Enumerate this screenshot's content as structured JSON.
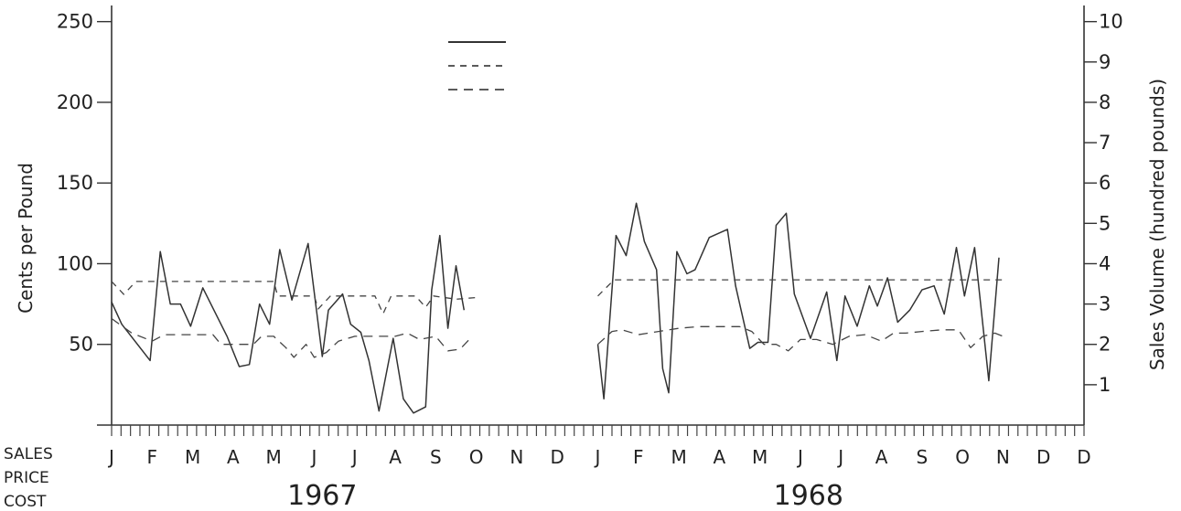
{
  "chart_data": {
    "type": "line",
    "y_left": {
      "label": "Cents per Pound",
      "ticks": [
        50,
        100,
        150,
        200,
        250
      ],
      "range": [
        0,
        260
      ]
    },
    "y_right": {
      "label": "Sales Volume (hundred pounds)",
      "ticks": [
        1,
        2,
        3,
        4,
        5,
        6,
        7,
        8,
        9,
        10
      ],
      "range": [
        0,
        10.4
      ]
    },
    "x": {
      "months": [
        "J",
        "F",
        "M",
        "A",
        "M",
        "J",
        "J",
        "A",
        "S",
        "O",
        "N",
        "D"
      ],
      "years": [
        "1967",
        "1968"
      ],
      "range": [
        0,
        24
      ]
    },
    "legend": {
      "placement": "top-center",
      "labels": [
        "SALES",
        "PRICE",
        "COST"
      ]
    },
    "series": [
      {
        "name": "SALES",
        "axis": "right",
        "style": "solid",
        "segments": [
          [
            [
              0.0,
              3.05
            ],
            [
              0.25,
              2.5
            ],
            [
              0.95,
              1.6
            ],
            [
              1.2,
              4.3
            ],
            [
              1.45,
              3.0
            ],
            [
              1.7,
              3.0
            ],
            [
              1.95,
              2.45
            ],
            [
              2.25,
              3.4
            ],
            [
              2.85,
              2.2
            ],
            [
              3.15,
              1.45
            ],
            [
              3.4,
              1.5
            ],
            [
              3.65,
              3.0
            ],
            [
              3.9,
              2.5
            ],
            [
              4.15,
              4.35
            ],
            [
              4.45,
              3.1
            ],
            [
              4.85,
              4.5
            ],
            [
              5.2,
              1.7
            ],
            [
              5.35,
              2.85
            ],
            [
              5.7,
              3.25
            ],
            [
              5.9,
              2.5
            ],
            [
              6.15,
              2.3
            ],
            [
              6.35,
              1.6
            ],
            [
              6.6,
              0.35
            ],
            [
              6.95,
              2.15
            ],
            [
              7.2,
              0.65
            ],
            [
              7.45,
              0.3
            ],
            [
              7.75,
              0.45
            ],
            [
              7.9,
              3.35
            ],
            [
              8.1,
              4.7
            ],
            [
              8.3,
              2.4
            ],
            [
              8.5,
              3.95
            ],
            [
              8.7,
              2.85
            ]
          ],
          [
            [
              12.0,
              2.0
            ],
            [
              12.15,
              0.65
            ],
            [
              12.45,
              4.7
            ],
            [
              12.7,
              4.2
            ],
            [
              12.95,
              5.5
            ],
            [
              13.15,
              4.55
            ],
            [
              13.45,
              3.85
            ],
            [
              13.6,
              1.4
            ],
            [
              13.75,
              0.8
            ],
            [
              13.95,
              4.3
            ],
            [
              14.2,
              3.75
            ],
            [
              14.4,
              3.85
            ],
            [
              14.75,
              4.65
            ],
            [
              15.2,
              4.85
            ],
            [
              15.4,
              3.45
            ],
            [
              15.75,
              1.9
            ],
            [
              15.95,
              2.05
            ],
            [
              16.2,
              2.05
            ],
            [
              16.4,
              4.95
            ],
            [
              16.65,
              5.25
            ],
            [
              16.85,
              3.25
            ],
            [
              17.25,
              2.15
            ],
            [
              17.65,
              3.3
            ],
            [
              17.9,
              1.6
            ],
            [
              18.1,
              3.2
            ],
            [
              18.4,
              2.45
            ],
            [
              18.7,
              3.45
            ],
            [
              18.9,
              2.95
            ],
            [
              19.15,
              3.65
            ],
            [
              19.4,
              2.55
            ],
            [
              19.7,
              2.85
            ],
            [
              20.0,
              3.35
            ],
            [
              20.3,
              3.45
            ],
            [
              20.55,
              2.75
            ],
            [
              20.85,
              4.4
            ],
            [
              21.05,
              3.2
            ],
            [
              21.3,
              4.4
            ],
            [
              21.65,
              1.1
            ],
            [
              21.9,
              4.15
            ]
          ]
        ]
      },
      {
        "name": "PRICE",
        "axis": "left",
        "style": "dashed",
        "segments": [
          [
            [
              0.0,
              89
            ],
            [
              0.3,
              81
            ],
            [
              0.6,
              89
            ],
            [
              1.0,
              89
            ],
            [
              1.5,
              89
            ],
            [
              2.0,
              89
            ],
            [
              2.5,
              89
            ],
            [
              3.0,
              89
            ],
            [
              3.5,
              89
            ],
            [
              4.0,
              89
            ],
            [
              4.1,
              80
            ],
            [
              4.5,
              80
            ],
            [
              5.0,
              80
            ],
            [
              5.1,
              72
            ],
            [
              5.4,
              80
            ],
            [
              6.0,
              80
            ],
            [
              6.5,
              80
            ],
            [
              6.7,
              69
            ],
            [
              6.9,
              80
            ],
            [
              7.5,
              80
            ],
            [
              7.75,
              73
            ],
            [
              7.95,
              80
            ],
            [
              8.5,
              78
            ],
            [
              9.0,
              79
            ]
          ],
          [
            [
              12.0,
              80
            ],
            [
              12.4,
              90
            ],
            [
              13.0,
              90
            ],
            [
              14.0,
              90
            ],
            [
              15.0,
              90
            ],
            [
              16.0,
              90
            ],
            [
              17.0,
              90
            ],
            [
              18.0,
              90
            ],
            [
              19.0,
              90
            ],
            [
              20.0,
              90
            ],
            [
              21.0,
              90
            ],
            [
              22.0,
              90
            ]
          ]
        ]
      },
      {
        "name": "COST",
        "axis": "left",
        "style": "dashed",
        "segments": [
          [
            [
              0.0,
              66
            ],
            [
              0.5,
              57
            ],
            [
              1.0,
              52
            ],
            [
              1.3,
              56
            ],
            [
              2.0,
              56
            ],
            [
              2.5,
              56
            ],
            [
              2.7,
              50
            ],
            [
              3.0,
              50
            ],
            [
              3.5,
              50
            ],
            [
              3.7,
              55
            ],
            [
              4.0,
              55
            ],
            [
              4.3,
              48
            ],
            [
              4.5,
              42
            ],
            [
              4.8,
              50
            ],
            [
              5.0,
              42
            ],
            [
              5.3,
              45
            ],
            [
              5.6,
              52
            ],
            [
              6.0,
              55
            ],
            [
              6.5,
              55
            ],
            [
              7.0,
              55
            ],
            [
              7.3,
              57
            ],
            [
              7.6,
              53
            ],
            [
              8.0,
              55
            ],
            [
              8.3,
              46
            ],
            [
              8.6,
              47
            ],
            [
              8.9,
              55
            ]
          ],
          [
            [
              12.0,
              50
            ],
            [
              12.35,
              58
            ],
            [
              12.6,
              59
            ],
            [
              13.0,
              56
            ],
            [
              13.5,
              58
            ],
            [
              14.0,
              60
            ],
            [
              14.5,
              61
            ],
            [
              15.0,
              61
            ],
            [
              15.5,
              61
            ],
            [
              15.8,
              58
            ],
            [
              16.1,
              50
            ],
            [
              16.4,
              50
            ],
            [
              16.7,
              46
            ],
            [
              17.0,
              53
            ],
            [
              17.4,
              53
            ],
            [
              17.8,
              50
            ],
            [
              18.2,
              55
            ],
            [
              18.6,
              56
            ],
            [
              19.0,
              52
            ],
            [
              19.3,
              57
            ],
            [
              19.6,
              57
            ],
            [
              20.0,
              58
            ],
            [
              20.5,
              59
            ],
            [
              20.9,
              59
            ],
            [
              21.2,
              48
            ],
            [
              21.5,
              55
            ],
            [
              21.8,
              57
            ],
            [
              22.0,
              55
            ]
          ]
        ]
      }
    ]
  }
}
